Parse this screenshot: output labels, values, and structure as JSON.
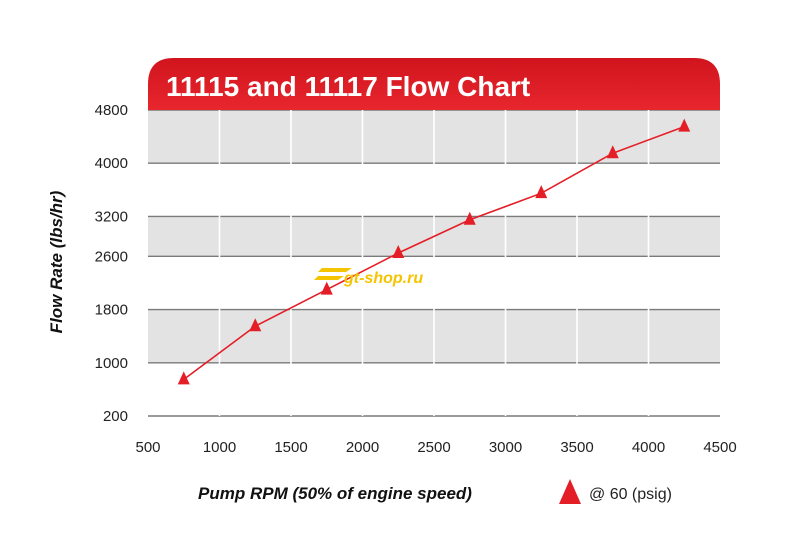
{
  "chart_data": {
    "type": "line",
    "title": "11115 and 11117 Flow Chart",
    "xlabel": "Pump RPM (50% of engine speed)",
    "ylabel": "Flow Rate (lbs/hr)",
    "xlim": [
      500,
      4500
    ],
    "ylim": [
      200,
      4800
    ],
    "xticks": [
      500,
      1000,
      1500,
      2000,
      2500,
      3000,
      3500,
      4000,
      4500
    ],
    "yticks": [
      200,
      1000,
      1800,
      2600,
      3200,
      4000,
      4800
    ],
    "grid": true,
    "legend_position": "bottom-right",
    "series": [
      {
        "name": "@ 60 (psig)",
        "marker": "triangle",
        "color": "#e41e26",
        "x": [
          750,
          1250,
          1750,
          2250,
          2750,
          3250,
          3750,
          4250
        ],
        "y": [
          750,
          1550,
          2100,
          2650,
          3150,
          3550,
          4150,
          4550
        ]
      }
    ]
  },
  "watermark": "gt-shop.ru",
  "colors": {
    "accent_red": "#e41e26",
    "band_gray": "#e3e3e3",
    "grid_line": "#7a7a7a"
  }
}
